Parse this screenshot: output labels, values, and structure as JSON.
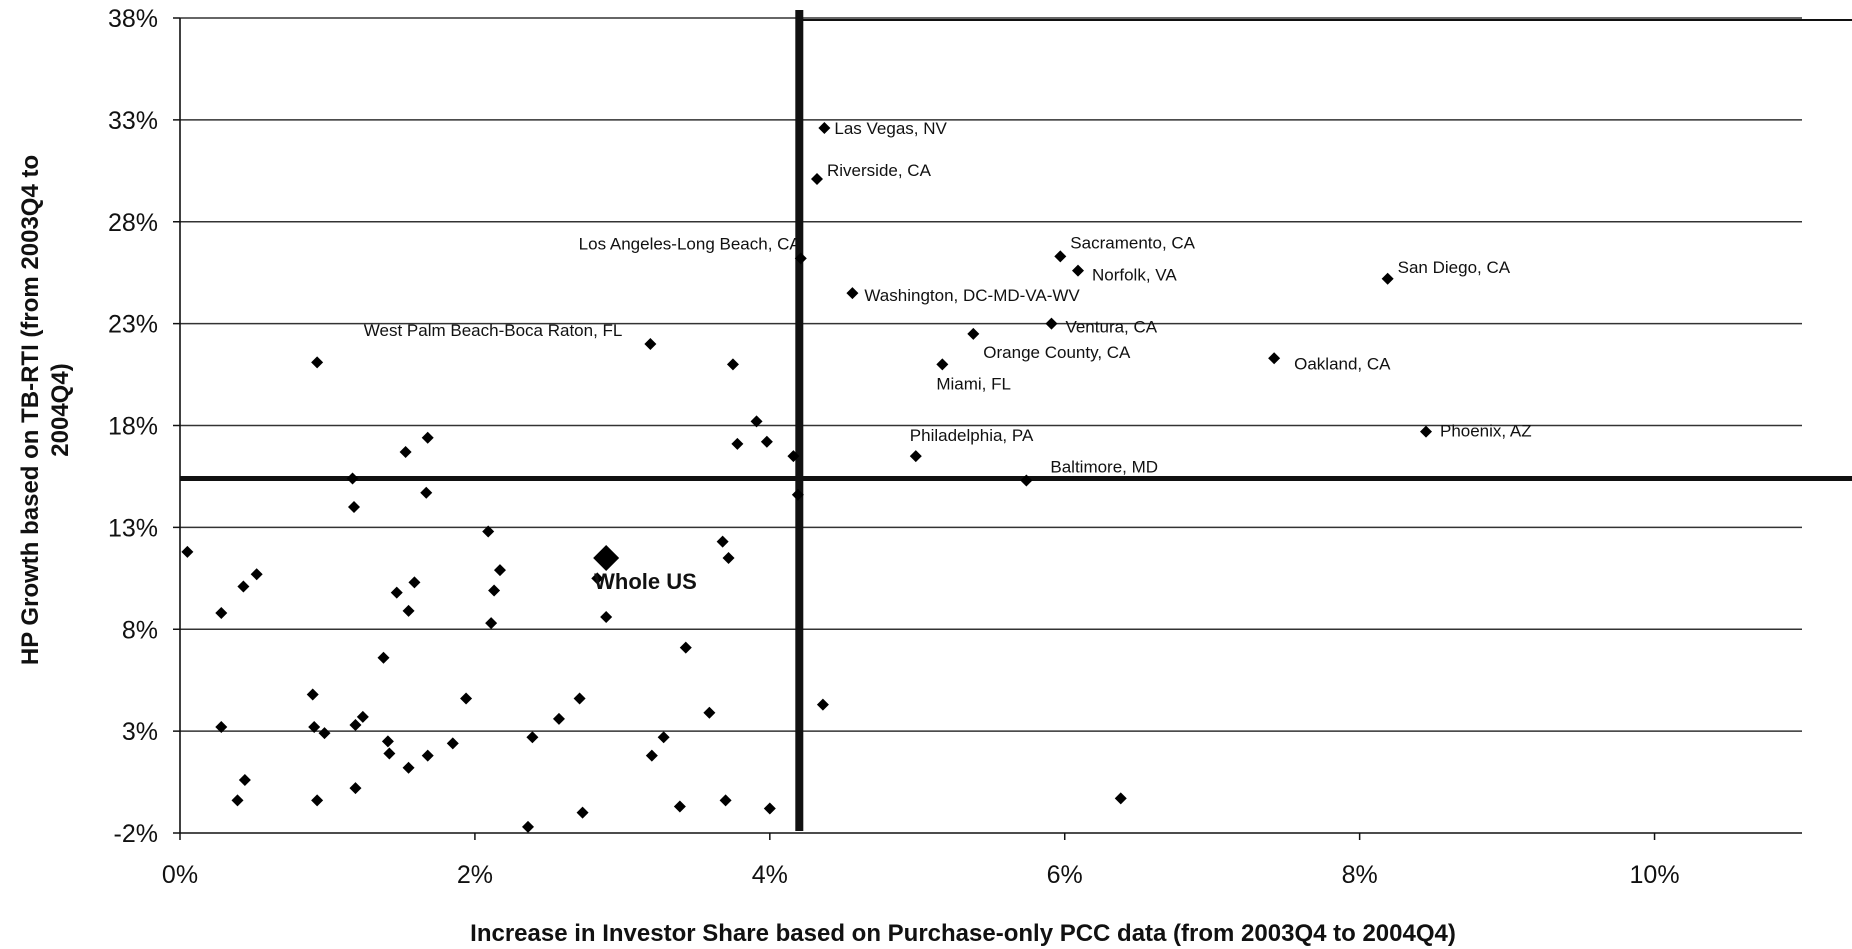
{
  "chart_data": {
    "type": "scatter",
    "title": "",
    "xlabel": "Increase in Investor Share based on Purchase-only PCC data (from 2003Q4 to 2004Q4)",
    "ylabel_lines": [
      "HP Growth based on TB-RTI (from 2003Q4 to",
      "2004Q4)"
    ],
    "xlim": [
      0,
      0.11
    ],
    "ylim": [
      -0.02,
      0.38
    ],
    "x_ticks": [
      0,
      0.02,
      0.04,
      0.06,
      0.08,
      0.1
    ],
    "x_tick_labels": [
      "0%",
      "2%",
      "4%",
      "6%",
      "8%",
      "10%"
    ],
    "y_ticks": [
      -0.02,
      0.03,
      0.08,
      0.13,
      0.18,
      0.23,
      0.28,
      0.33,
      0.38
    ],
    "y_tick_labels": [
      "-2%",
      "3%",
      "8%",
      "13%",
      "18%",
      "23%",
      "28%",
      "33%",
      "38%"
    ],
    "grid": "horizontal",
    "marker_color": "#000000",
    "reference_lines": {
      "x": 0.042,
      "y": 0.154
    },
    "highlight_box": {
      "x": [
        0.042,
        0.1135
      ],
      "y": [
        0.154,
        0.38
      ]
    },
    "labeled_points": [
      {
        "label": "Las Vegas, NV",
        "x": 0.0437,
        "y": 0.326
      },
      {
        "label": "Riverside, CA",
        "x": 0.0432,
        "y": 0.301
      },
      {
        "label": "Los Angeles-Long Beach, CA",
        "x": 0.0421,
        "y": 0.262
      },
      {
        "label": "Sacramento, CA",
        "x": 0.0597,
        "y": 0.263
      },
      {
        "label": "Norfolk, VA",
        "x": 0.0609,
        "y": 0.256
      },
      {
        "label": "San Diego, CA",
        "x": 0.0819,
        "y": 0.252
      },
      {
        "label": "Washington, DC-MD-VA-WV",
        "x": 0.0456,
        "y": 0.245
      },
      {
        "label": "West Palm Beach-Boca Raton, FL",
        "x": 0.0319,
        "y": 0.22
      },
      {
        "label": "Ventura, CA",
        "x": 0.0591,
        "y": 0.23
      },
      {
        "label": "Orange County, CA",
        "x": 0.0538,
        "y": 0.225
      },
      {
        "label": "Oakland, CA",
        "x": 0.0742,
        "y": 0.213
      },
      {
        "label": "Miami, FL",
        "x": 0.0517,
        "y": 0.21
      },
      {
        "label": "Phoenix, AZ",
        "x": 0.0845,
        "y": 0.177
      },
      {
        "label": "Philadelphia, PA",
        "x": 0.0499,
        "y": 0.165
      },
      {
        "label": "Baltimore, MD",
        "x": 0.0574,
        "y": 0.153
      }
    ],
    "highlight_point": {
      "label": "Whole US",
      "x": 0.0289,
      "y": 0.115
    },
    "points": [
      [
        0.0005,
        0.118
      ],
      [
        0.0028,
        0.088
      ],
      [
        0.0043,
        0.101
      ],
      [
        0.0052,
        0.107
      ],
      [
        0.0093,
        0.211
      ],
      [
        0.0028,
        0.032
      ],
      [
        0.0039,
        -0.004
      ],
      [
        0.0044,
        0.006
      ],
      [
        0.009,
        0.048
      ],
      [
        0.0091,
        0.032
      ],
      [
        0.0093,
        -0.004
      ],
      [
        0.0098,
        0.029
      ],
      [
        0.0117,
        0.154
      ],
      [
        0.0118,
        0.14
      ],
      [
        0.0119,
        0.033
      ],
      [
        0.0119,
        0.002
      ],
      [
        0.0124,
        0.037
      ],
      [
        0.0138,
        0.066
      ],
      [
        0.0141,
        0.025
      ],
      [
        0.0142,
        0.019
      ],
      [
        0.0147,
        0.098
      ],
      [
        0.0153,
        0.167
      ],
      [
        0.0155,
        0.089
      ],
      [
        0.0155,
        0.012
      ],
      [
        0.0159,
        0.103
      ],
      [
        0.0167,
        0.147
      ],
      [
        0.0168,
        0.174
      ],
      [
        0.0168,
        0.018
      ],
      [
        0.0185,
        0.024
      ],
      [
        0.0194,
        0.046
      ],
      [
        0.0209,
        0.128
      ],
      [
        0.0211,
        0.083
      ],
      [
        0.0213,
        0.099
      ],
      [
        0.0217,
        0.109
      ],
      [
        0.0236,
        -0.017
      ],
      [
        0.0239,
        0.027
      ],
      [
        0.0257,
        0.036
      ],
      [
        0.0271,
        0.046
      ],
      [
        0.0273,
        -0.01
      ],
      [
        0.0283,
        0.105
      ],
      [
        0.0289,
        0.086
      ],
      [
        0.032,
        0.018
      ],
      [
        0.0328,
        0.027
      ],
      [
        0.0339,
        -0.007
      ],
      [
        0.0343,
        0.071
      ],
      [
        0.0359,
        0.039
      ],
      [
        0.0368,
        0.123
      ],
      [
        0.037,
        -0.004
      ],
      [
        0.0372,
        0.115
      ],
      [
        0.0375,
        0.21
      ],
      [
        0.0378,
        0.171
      ],
      [
        0.0391,
        0.182
      ],
      [
        0.0398,
        0.172
      ],
      [
        0.04,
        -0.008
      ],
      [
        0.0416,
        0.165
      ],
      [
        0.0419,
        0.146
      ],
      [
        0.0436,
        0.043
      ],
      [
        0.0638,
        -0.003
      ]
    ]
  }
}
